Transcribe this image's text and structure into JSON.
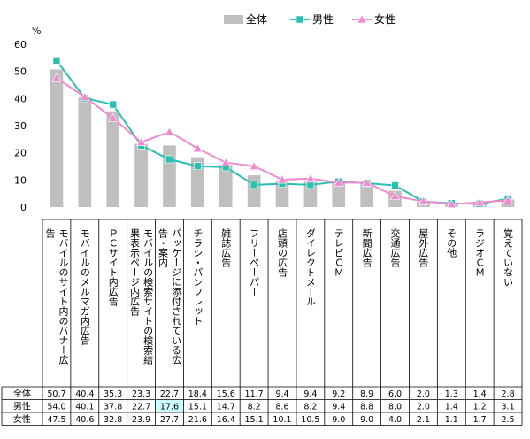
{
  "chart_data": {
    "type": "bar",
    "unit": "%",
    "ylim": [
      0,
      60
    ],
    "yticks": [
      0,
      10,
      20,
      30,
      40,
      50,
      60
    ],
    "grid": false,
    "legend_position": "top-center",
    "categories": [
      "モバイルのサイト内のバナー広告",
      "モバイルのメルマガ内広告",
      "ＰＣサイト内広告",
      "モバイルの検索サイトの検索結果表示ページ内広告",
      "パッケージに添付されている広告・案内",
      "チラシ・パンフレット",
      "雑誌広告",
      "フリーペーパー",
      "店頭の広告",
      "ダイレクトメール",
      "テレビＣＭ",
      "新聞広告",
      "交通広告",
      "屋外広告",
      "その他",
      "ラジオＣＭ",
      "覚えていない"
    ],
    "series": [
      {
        "name": "全体",
        "kind": "bar",
        "color": "#bfbfbf",
        "values": [
          50.7,
          40.4,
          35.3,
          23.3,
          22.7,
          18.4,
          15.6,
          11.7,
          9.4,
          9.4,
          9.2,
          8.9,
          6.0,
          2.0,
          1.3,
          1.4,
          2.8
        ],
        "labels": [
          "50.7",
          "40.4",
          "35.3",
          "23.3",
          "22.7",
          "18.4",
          "15.6",
          "11.7",
          "9.4",
          "9.4",
          "9.2",
          "8.9",
          "6.0",
          "2.0",
          "1.3",
          "1.4",
          "2.8"
        ]
      },
      {
        "name": "男性",
        "kind": "line",
        "marker": "square",
        "color": "#2cbfb0",
        "values": [
          54.0,
          40.1,
          37.8,
          22.7,
          17.6,
          15.1,
          14.7,
          8.2,
          8.6,
          8.2,
          9.4,
          8.8,
          8.0,
          2.0,
          1.4,
          1.2,
          3.1
        ],
        "labels": [
          "54.0",
          "40.1",
          "37.8",
          "22.7",
          "17.6",
          "15.1",
          "14.7",
          "8.2",
          "8.6",
          "8.2",
          "9.4",
          "8.8",
          "8.0",
          "2.0",
          "1.4",
          "1.2",
          "3.1"
        ]
      },
      {
        "name": "女性",
        "kind": "line",
        "marker": "triangle",
        "color": "#f08ad0",
        "values": [
          47.5,
          40.6,
          32.8,
          23.9,
          27.7,
          21.6,
          16.4,
          15.1,
          10.1,
          10.5,
          9.0,
          9.0,
          4.0,
          2.1,
          1.1,
          1.7,
          2.5
        ],
        "labels": [
          "47.5",
          "40.6",
          "32.8",
          "23.9",
          "27.7",
          "21.6",
          "16.4",
          "15.1",
          "10.1",
          "10.5",
          "9.0",
          "9.0",
          "4.0",
          "2.1",
          "1.1",
          "1.7",
          "2.5"
        ]
      }
    ],
    "highlight_cell": {
      "series": 1,
      "category": 4,
      "color": "#ccffff"
    }
  }
}
